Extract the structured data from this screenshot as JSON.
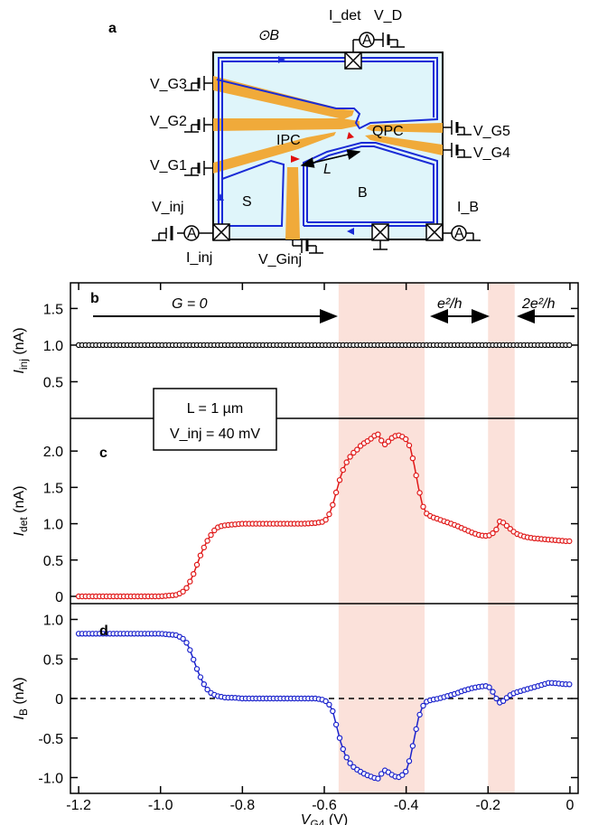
{
  "schematic": {
    "panel_letter": "a",
    "field_label": "⊙B",
    "labels": {
      "vg3": "V_G3",
      "vg2": "V_G2",
      "vg1": "V_G1",
      "vinj": "V_inj",
      "iinj": "I_inj",
      "vginj": "V_Ginj",
      "idet": "I_det",
      "vd": "V_D",
      "vg5": "V_G5",
      "vg4": "V_G4",
      "ib": "I_B",
      "ipc": "IPC",
      "qpc": "QPC",
      "s": "S",
      "b": "B",
      "l": "L",
      "ammeter": "A"
    },
    "colors": {
      "mesa": "#dff5fa",
      "gate": "#f0aa3a",
      "edge": "#1a2bd6",
      "arrow_red": "#e01010"
    }
  },
  "annotations": {
    "g0": "G = 0",
    "e2h": "e²/h",
    "two_e2h": "2e²/h",
    "box_line1": "L = 1 µm",
    "box_line2": "V_inj = 40 mV"
  },
  "chart_data": [
    {
      "type": "line",
      "panel": "b",
      "ylabel": "I_inj (nA)",
      "ylim": [
        0,
        1.85
      ],
      "yticks": [
        "1.5",
        "1.0",
        "0.5"
      ],
      "color": "#000000",
      "series": [
        {
          "x": [
            -1.2,
            -1.15,
            -1.1,
            -1.05,
            -1.0,
            -0.95,
            -0.9,
            -0.85,
            -0.8,
            -0.75,
            -0.7,
            -0.65,
            -0.6,
            -0.55,
            -0.5,
            -0.45,
            -0.4,
            -0.35,
            -0.3,
            -0.25,
            -0.2,
            -0.15,
            -0.1,
            -0.05,
            0.0
          ],
          "y": [
            1.0,
            1.0,
            1.0,
            1.0,
            1.0,
            1.0,
            1.0,
            1.0,
            1.0,
            1.0,
            1.0,
            1.0,
            1.0,
            1.0,
            1.0,
            1.0,
            1.0,
            1.0,
            1.0,
            1.0,
            1.0,
            1.0,
            1.0,
            1.0,
            1.0
          ]
        }
      ]
    },
    {
      "type": "line",
      "panel": "c",
      "ylabel": "I_det (nA)",
      "ylim": [
        -0.1,
        2.45
      ],
      "yticks": [
        "2.0",
        "1.5",
        "1.0",
        "0.5",
        "0"
      ],
      "color": "#e01818",
      "series": [
        {
          "x": [
            -1.2,
            -1.15,
            -1.1,
            -1.05,
            -1.0,
            -0.96,
            -0.94,
            -0.93,
            -0.92,
            -0.91,
            -0.9,
            -0.89,
            -0.88,
            -0.87,
            -0.86,
            -0.85,
            -0.84,
            -0.82,
            -0.8,
            -0.75,
            -0.7,
            -0.65,
            -0.62,
            -0.6,
            -0.59,
            -0.58,
            -0.57,
            -0.56,
            -0.55,
            -0.54,
            -0.53,
            -0.52,
            -0.51,
            -0.5,
            -0.49,
            -0.48,
            -0.47,
            -0.46,
            -0.45,
            -0.44,
            -0.43,
            -0.42,
            -0.41,
            -0.4,
            -0.39,
            -0.38,
            -0.37,
            -0.36,
            -0.35,
            -0.34,
            -0.32,
            -0.3,
            -0.28,
            -0.26,
            -0.24,
            -0.22,
            -0.2,
            -0.19,
            -0.18,
            -0.17,
            -0.16,
            -0.15,
            -0.14,
            -0.13,
            -0.11,
            -0.09,
            -0.07,
            -0.05,
            -0.03,
            -0.01,
            0.0
          ],
          "y": [
            0,
            0,
            0,
            0,
            0,
            0.02,
            0.08,
            0.18,
            0.3,
            0.45,
            0.6,
            0.72,
            0.82,
            0.9,
            0.95,
            0.97,
            0.98,
            0.99,
            1.0,
            1.0,
            1.0,
            1.0,
            1.01,
            1.03,
            1.1,
            1.25,
            1.45,
            1.65,
            1.8,
            1.9,
            1.97,
            2.02,
            2.08,
            2.12,
            2.15,
            2.2,
            2.24,
            2.14,
            2.08,
            2.16,
            2.2,
            2.22,
            2.2,
            2.16,
            2.05,
            1.8,
            1.5,
            1.25,
            1.14,
            1.1,
            1.06,
            1.02,
            0.98,
            0.93,
            0.88,
            0.84,
            0.83,
            0.86,
            0.92,
            1.05,
            1.0,
            0.95,
            0.9,
            0.86,
            0.82,
            0.8,
            0.79,
            0.78,
            0.77,
            0.76,
            0.76
          ]
        }
      ]
    },
    {
      "type": "line",
      "panel": "d",
      "ylabel": "I_B (nA)",
      "xlabel": "V_G4 (V)",
      "ylim": [
        -1.2,
        1.2
      ],
      "yticks": [
        "1.0",
        "0.5",
        "0",
        "-0.5",
        "-1.0"
      ],
      "xlim": [
        -1.22,
        0.02
      ],
      "xticks": [
        "-1.2",
        "-1.0",
        "-0.8",
        "-0.6",
        "-0.4",
        "-0.2",
        "0"
      ],
      "color": "#1a22cc",
      "series": [
        {
          "x": [
            -1.2,
            -1.15,
            -1.1,
            -1.05,
            -1.0,
            -0.96,
            -0.94,
            -0.93,
            -0.92,
            -0.91,
            -0.9,
            -0.89,
            -0.88,
            -0.87,
            -0.86,
            -0.85,
            -0.84,
            -0.82,
            -0.8,
            -0.75,
            -0.7,
            -0.65,
            -0.62,
            -0.6,
            -0.59,
            -0.58,
            -0.57,
            -0.56,
            -0.55,
            -0.54,
            -0.53,
            -0.52,
            -0.51,
            -0.5,
            -0.49,
            -0.48,
            -0.47,
            -0.46,
            -0.45,
            -0.44,
            -0.43,
            -0.42,
            -0.41,
            -0.4,
            -0.39,
            -0.38,
            -0.37,
            -0.36,
            -0.35,
            -0.34,
            -0.32,
            -0.3,
            -0.28,
            -0.26,
            -0.24,
            -0.22,
            -0.2,
            -0.19,
            -0.18,
            -0.17,
            -0.16,
            -0.15,
            -0.14,
            -0.13,
            -0.11,
            -0.09,
            -0.07,
            -0.05,
            -0.03,
            -0.01,
            0.0
          ],
          "y": [
            0.82,
            0.82,
            0.82,
            0.82,
            0.82,
            0.8,
            0.74,
            0.64,
            0.5,
            0.36,
            0.24,
            0.14,
            0.08,
            0.05,
            0.03,
            0.02,
            0.01,
            0.01,
            0.0,
            0.0,
            0.0,
            0.0,
            0.0,
            -0.02,
            -0.06,
            -0.15,
            -0.35,
            -0.55,
            -0.7,
            -0.8,
            -0.86,
            -0.9,
            -0.93,
            -0.96,
            -0.98,
            -1.0,
            -1.02,
            -0.95,
            -0.9,
            -0.95,
            -0.98,
            -1.0,
            -0.97,
            -0.92,
            -0.75,
            -0.5,
            -0.25,
            -0.1,
            -0.04,
            -0.02,
            0.0,
            0.03,
            0.06,
            0.1,
            0.13,
            0.15,
            0.16,
            0.1,
            0.0,
            -0.06,
            -0.02,
            0.03,
            0.06,
            0.08,
            0.11,
            0.14,
            0.17,
            0.2,
            0.19,
            0.18,
            0.18
          ]
        }
      ]
    }
  ],
  "shading": {
    "color": "#fbe1da",
    "bands": [
      [
        -0.565,
        -0.355
      ],
      [
        -0.2,
        -0.135
      ]
    ]
  }
}
